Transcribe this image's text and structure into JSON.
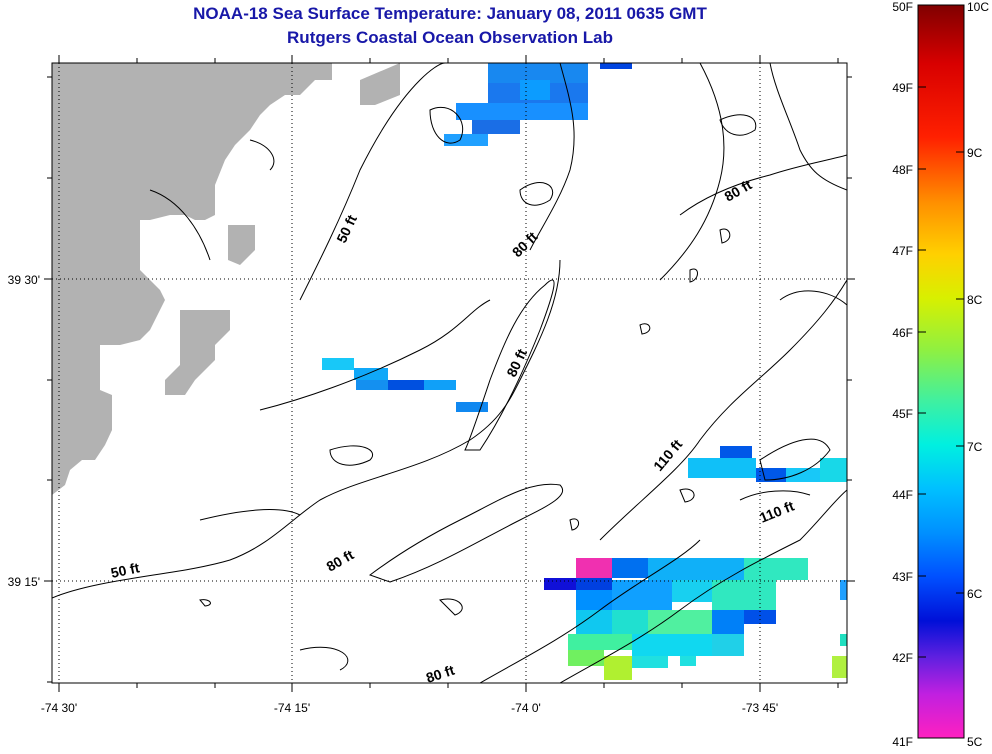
{
  "title": "NOAA-18 Sea Surface Temperature:  January 08, 2011 0635 GMT",
  "subtitle": "Rutgers Coastal Ocean Observation Lab",
  "axes": {
    "lon_ticks": [
      "-74 30'",
      "-74 15'",
      "-74 0'",
      "-73 45'"
    ],
    "lat_ticks": [
      "39 30'",
      "39 15'"
    ]
  },
  "contour_labels": [
    "50 ft",
    "50 ft",
    "80 ft",
    "80 ft",
    "80 ft",
    "80 ft",
    "80 ft",
    "110 ft",
    "110 ft"
  ],
  "colorbar": {
    "fahrenheit": [
      "50F",
      "49F",
      "48F",
      "47F",
      "46F",
      "45F",
      "44F",
      "43F",
      "42F",
      "41F"
    ],
    "celsius": [
      "10C",
      "9C",
      "8C",
      "7C",
      "6C",
      "5C"
    ]
  },
  "colors": {
    "land": "#b2b2b2",
    "title": "#1818a8"
  }
}
